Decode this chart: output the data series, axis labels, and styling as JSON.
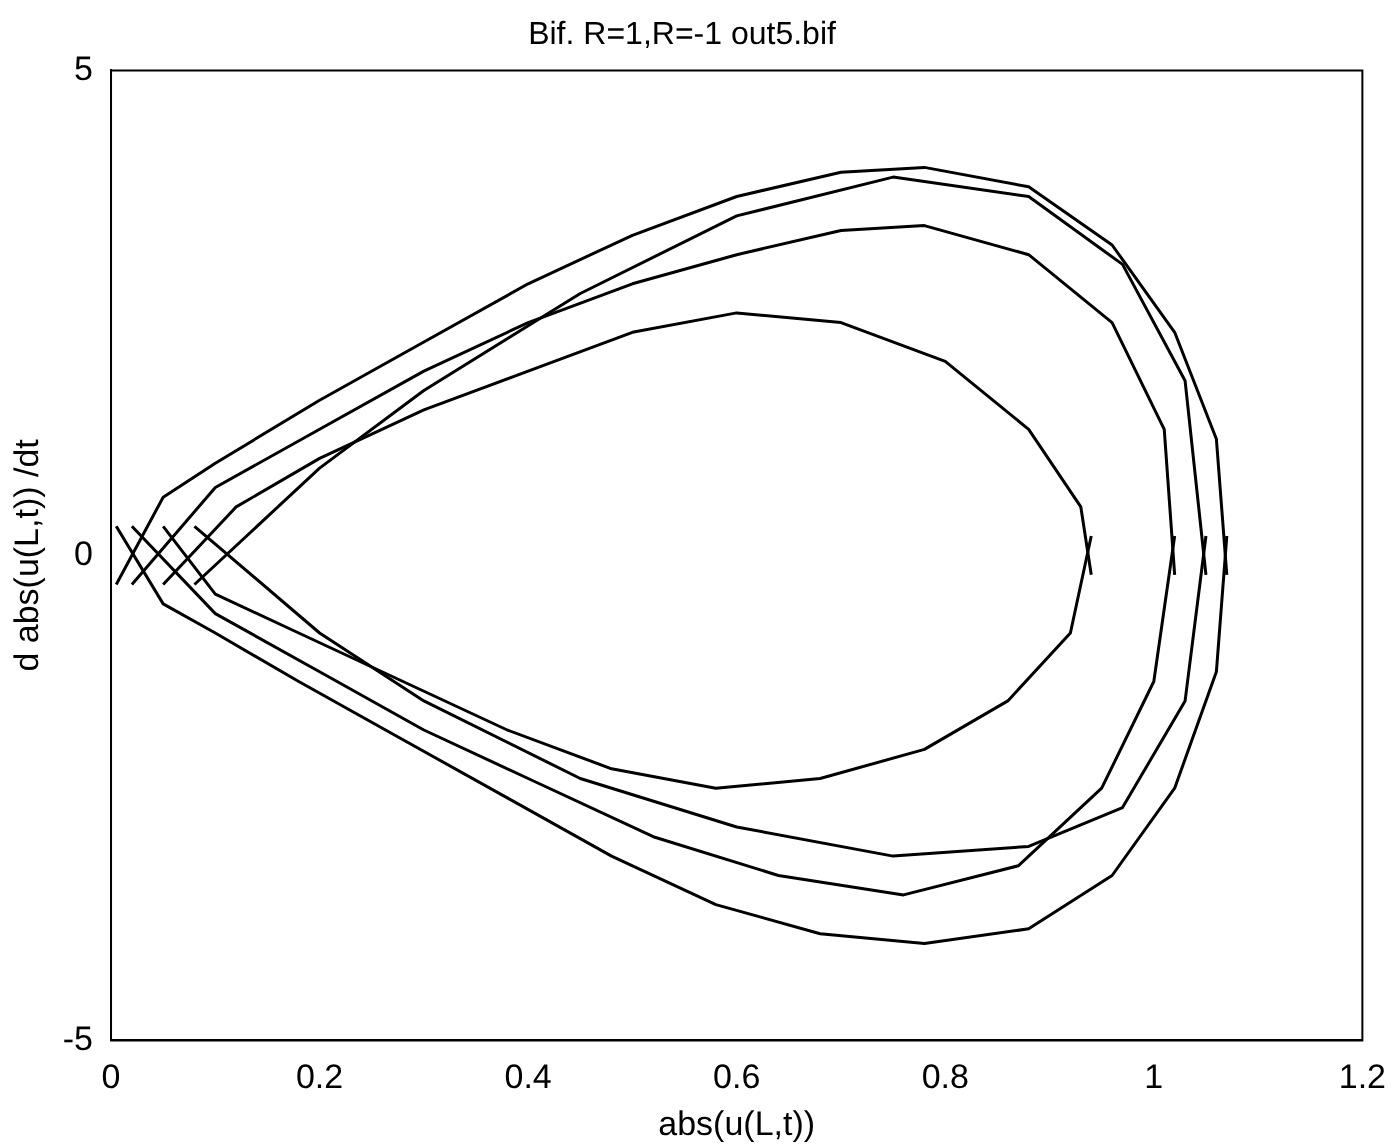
{
  "chart_data": {
    "type": "line",
    "title": "Bif. R=1,R=-1 out5.bif",
    "xlabel": "abs(u(L,t))",
    "ylabel": "d abs(u(L,t)) /dt",
    "xlim": [
      0,
      1.2
    ],
    "ylim": [
      -5,
      5
    ],
    "xticks": [
      0,
      0.2,
      0.4,
      0.6,
      0.8,
      1,
      1.2
    ],
    "yticks": [
      -5,
      0,
      5
    ],
    "grid": false,
    "legend": false,
    "marker": "none",
    "line_style": "solid",
    "series": [
      {
        "color": "#000000",
        "x": [
          0.005,
          0.05,
          0.1,
          0.2,
          0.3,
          0.4,
          0.5,
          0.6,
          0.7,
          0.78,
          0.88,
          0.96,
          1.02,
          1.06,
          1.07
        ],
        "values": [
          -0.3,
          0.6,
          0.95,
          1.6,
          2.2,
          2.8,
          3.3,
          3.7,
          3.95,
          4,
          3.8,
          3.2,
          2.3,
          1.2,
          -0.2
        ]
      },
      {
        "color": "#000000",
        "x": [
          0.005,
          0.05,
          0.1,
          0.18,
          0.28,
          0.38,
          0.48,
          0.58,
          0.68,
          0.78,
          0.88,
          0.96,
          1.02,
          1.06,
          1.07
        ],
        "values": [
          0.3,
          -0.5,
          -0.8,
          -1.3,
          -1.9,
          -2.5,
          -3.1,
          -3.6,
          -3.9,
          -4,
          -3.85,
          -3.3,
          -2.4,
          -1.2,
          0.2
        ]
      },
      {
        "color": "#000000",
        "x": [
          0.02,
          0.1,
          0.2,
          0.3,
          0.4,
          0.5,
          0.6,
          0.7,
          0.78,
          0.88,
          0.96,
          1.01,
          1.02
        ],
        "values": [
          -0.3,
          0.7,
          1.3,
          1.9,
          2.4,
          2.8,
          3.1,
          3.35,
          3.4,
          3.1,
          2.4,
          1.3,
          -0.2
        ]
      },
      {
        "color": "#000000",
        "x": [
          0.02,
          0.1,
          0.2,
          0.3,
          0.4,
          0.52,
          0.64,
          0.76,
          0.87,
          0.95,
          1,
          1.02
        ],
        "values": [
          0.3,
          -0.6,
          -1.2,
          -1.8,
          -2.3,
          -2.9,
          -3.3,
          -3.5,
          -3.2,
          -2.4,
          -1.3,
          0.2
        ]
      },
      {
        "color": "#000000",
        "x": [
          0.05,
          0.12,
          0.2,
          0.3,
          0.4,
          0.5,
          0.6,
          0.7,
          0.8,
          0.88,
          0.93,
          0.94
        ],
        "values": [
          -0.3,
          0.5,
          1,
          1.5,
          1.9,
          2.3,
          2.5,
          2.4,
          2,
          1.3,
          0.5,
          -0.2
        ]
      },
      {
        "color": "#000000",
        "x": [
          0.05,
          0.1,
          0.18,
          0.28,
          0.38,
          0.48,
          0.58,
          0.68,
          0.78,
          0.86,
          0.92,
          0.94
        ],
        "values": [
          0.3,
          -0.4,
          -0.8,
          -1.3,
          -1.8,
          -2.2,
          -2.4,
          -2.3,
          -2,
          -1.5,
          -0.8,
          0.2
        ]
      },
      {
        "color": "#000000",
        "x": [
          0.08,
          0.2,
          0.3,
          0.45,
          0.6,
          0.75,
          0.88,
          0.97,
          1.03,
          1.05
        ],
        "values": [
          -0.3,
          0.9,
          1.7,
          2.7,
          3.5,
          3.9,
          3.7,
          3,
          1.8,
          -0.2
        ]
      },
      {
        "color": "#000000",
        "x": [
          0.08,
          0.2,
          0.3,
          0.45,
          0.6,
          0.75,
          0.88,
          0.97,
          1.03,
          1.05
        ],
        "values": [
          0.3,
          -0.8,
          -1.5,
          -2.3,
          -2.8,
          -3.1,
          -3,
          -2.6,
          -1.5,
          0.2
        ]
      }
    ]
  }
}
